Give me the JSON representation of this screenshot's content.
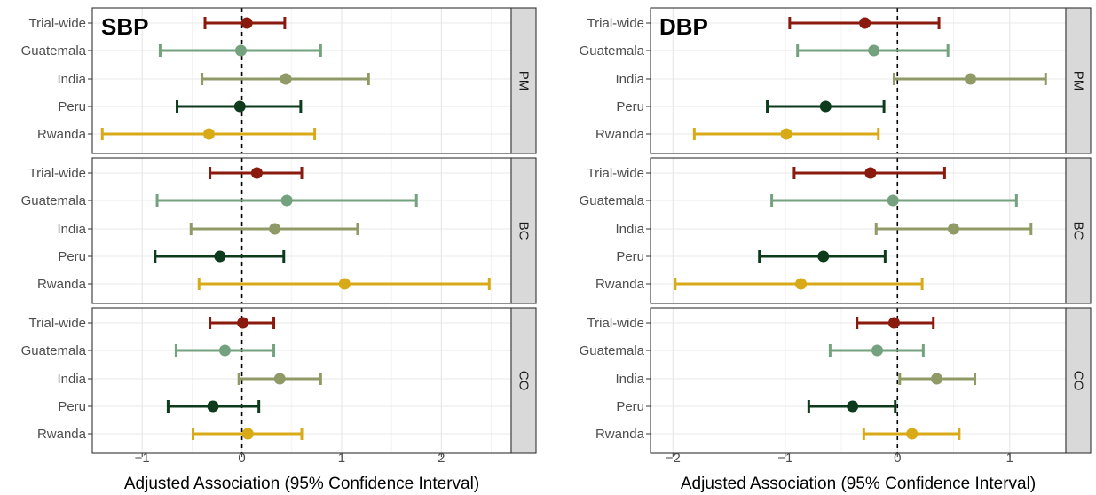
{
  "chart_data": [
    {
      "type": "forest",
      "title": "SBP",
      "xlabel": "Adjusted Association (95% Confidence Interval)",
      "xlim": [
        -1.5,
        2.7
      ],
      "xticks": [
        -1,
        0,
        1,
        2
      ],
      "reference_line": 0,
      "categories": [
        "Trial-wide",
        "Guatemala",
        "India",
        "Peru",
        "Rwanda"
      ],
      "colors": [
        "#8B1A0E",
        "#74A27F",
        "#8F9A66",
        "#0D3B1C",
        "#D9AA18"
      ],
      "facets": [
        {
          "label": "PM",
          "est": [
            0.05,
            -0.01,
            0.44,
            -0.02,
            -0.33
          ],
          "lo": [
            -0.37,
            -0.82,
            -0.4,
            -0.65,
            -1.4
          ],
          "hi": [
            0.43,
            0.79,
            1.27,
            0.59,
            0.73
          ]
        },
        {
          "label": "BC",
          "est": [
            0.15,
            0.45,
            0.33,
            -0.22,
            1.03
          ],
          "lo": [
            -0.32,
            -0.85,
            -0.51,
            -0.87,
            -0.43
          ],
          "hi": [
            0.6,
            1.75,
            1.16,
            0.42,
            2.48
          ]
        },
        {
          "label": "CO",
          "est": [
            0.01,
            -0.17,
            0.38,
            -0.29,
            0.06
          ],
          "lo": [
            -0.32,
            -0.66,
            -0.03,
            -0.74,
            -0.49
          ],
          "hi": [
            0.32,
            0.32,
            0.79,
            0.17,
            0.6
          ]
        }
      ]
    },
    {
      "type": "forest",
      "title": "DBP",
      "xlabel": "Adjusted Association (95% Confidence Interval)",
      "xlim": [
        -2.2,
        1.5
      ],
      "xticks": [
        -2,
        -1,
        0,
        1
      ],
      "reference_line": 0,
      "categories": [
        "Trial-wide",
        "Guatemala",
        "India",
        "Peru",
        "Rwanda"
      ],
      "colors": [
        "#8B1A0E",
        "#74A27F",
        "#8F9A66",
        "#0D3B1C",
        "#D9AA18"
      ],
      "facets": [
        {
          "label": "PM",
          "est": [
            -0.29,
            -0.21,
            0.65,
            -0.64,
            -0.99
          ],
          "lo": [
            -0.96,
            -0.89,
            -0.03,
            -1.16,
            -1.81
          ],
          "hi": [
            0.37,
            0.45,
            1.32,
            -0.12,
            -0.17
          ]
        },
        {
          "label": "BC",
          "est": [
            -0.24,
            -0.04,
            0.5,
            -0.66,
            -0.86
          ],
          "lo": [
            -0.92,
            -1.12,
            -0.19,
            -1.23,
            -1.98
          ],
          "hi": [
            0.42,
            1.06,
            1.19,
            -0.11,
            0.22
          ]
        },
        {
          "label": "CO",
          "est": [
            -0.03,
            -0.18,
            0.35,
            -0.4,
            0.13
          ],
          "lo": [
            -0.36,
            -0.6,
            0.02,
            -0.79,
            -0.3
          ],
          "hi": [
            0.32,
            0.23,
            0.69,
            -0.02,
            0.55
          ]
        }
      ]
    }
  ]
}
